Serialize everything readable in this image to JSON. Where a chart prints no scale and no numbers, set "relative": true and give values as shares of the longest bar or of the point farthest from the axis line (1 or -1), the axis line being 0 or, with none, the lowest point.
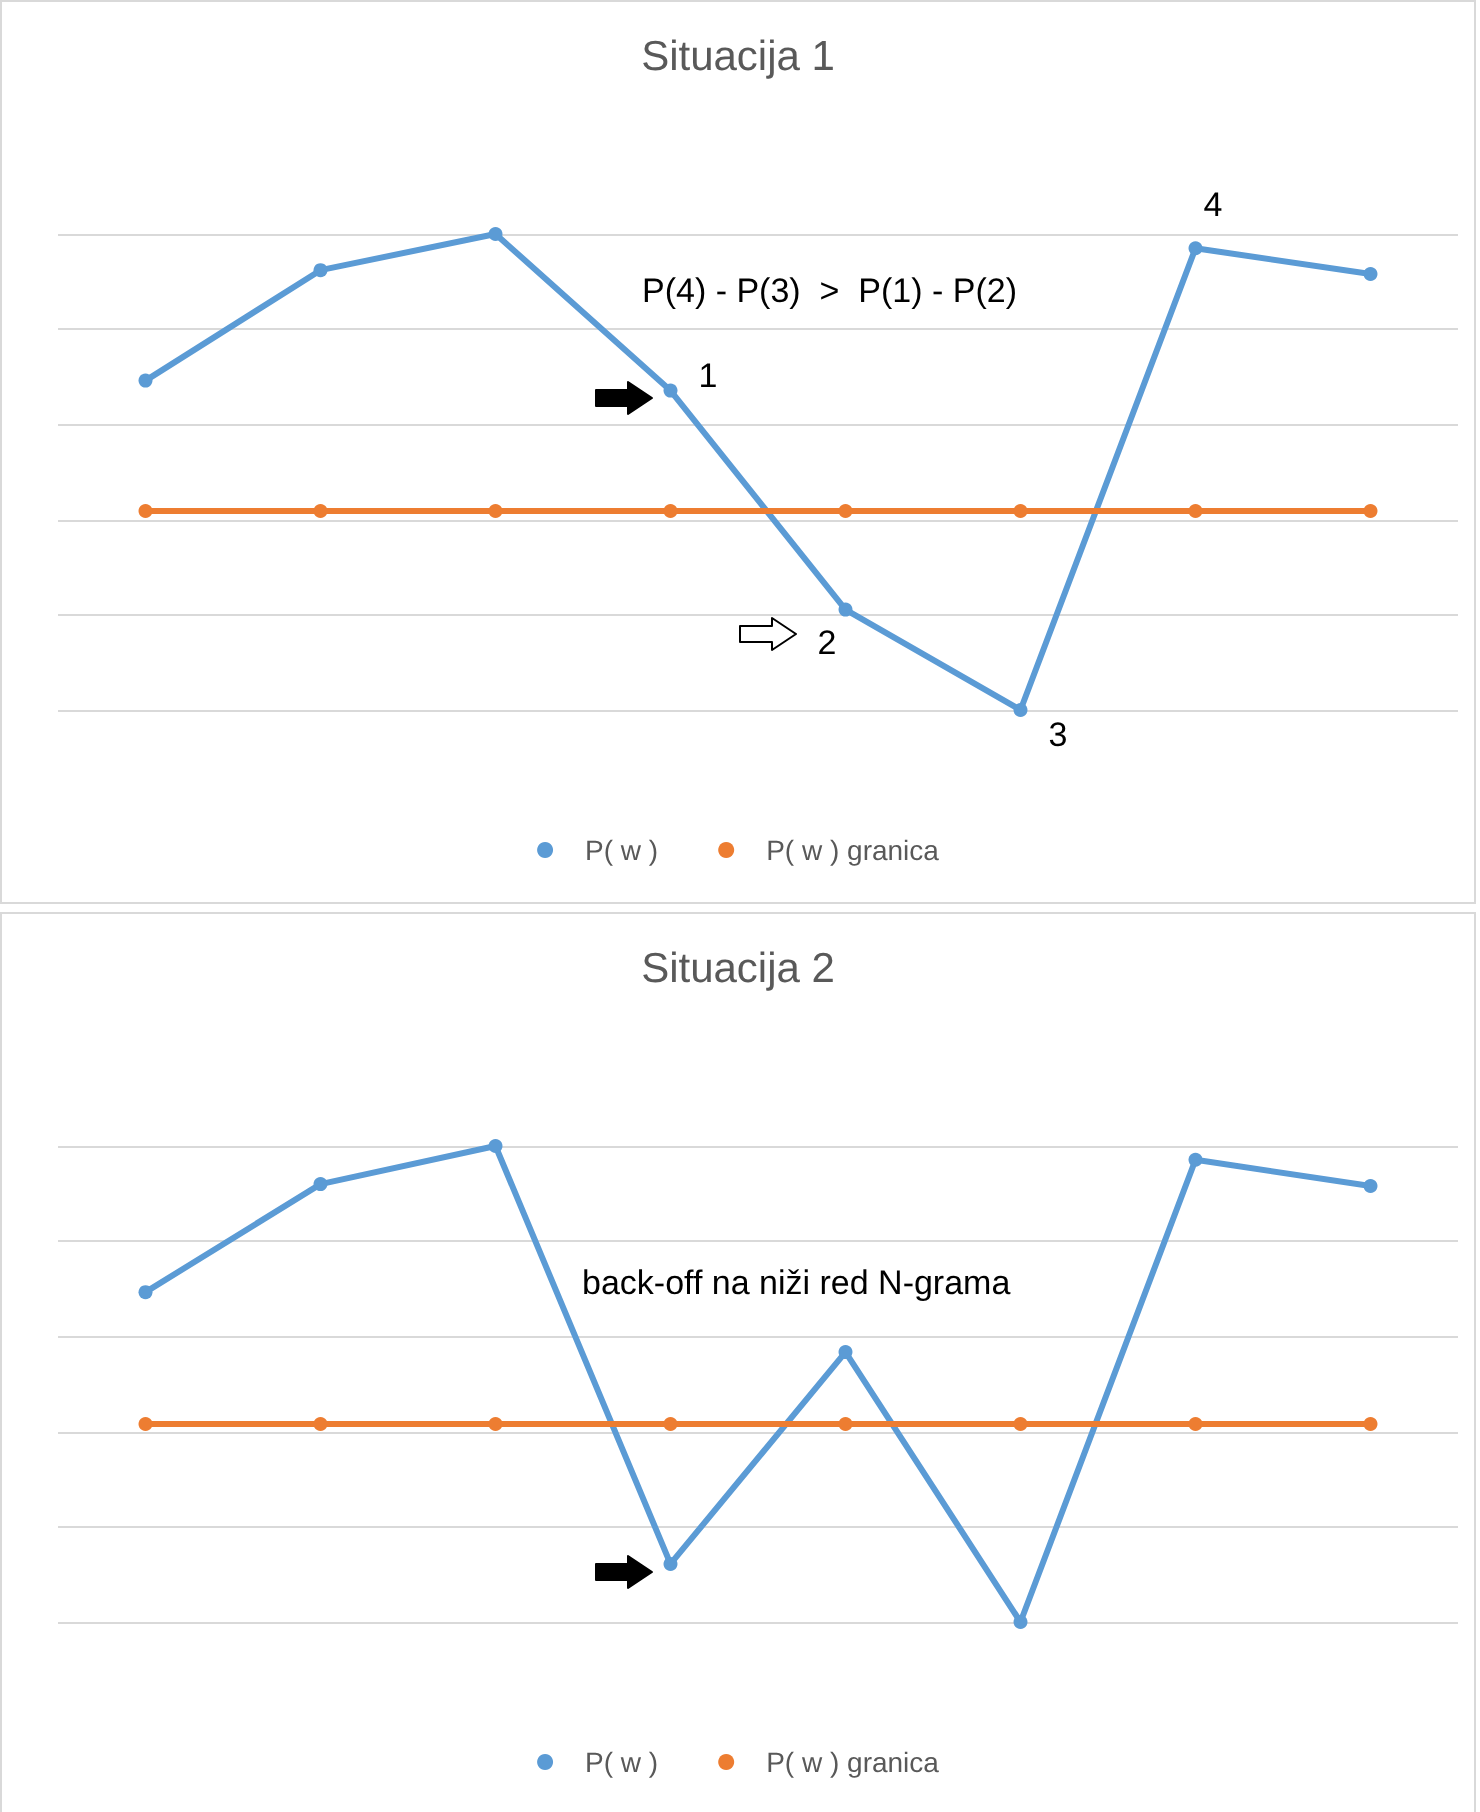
{
  "chart_data": [
    {
      "type": "line",
      "title": "Situacija 1",
      "relative": true,
      "categories": [
        null,
        null,
        null,
        null,
        null,
        null,
        null,
        null
      ],
      "grid": "y",
      "legend": "bottom",
      "marker": "circle",
      "annotations": [
        "P(4) - P(3)  >  P(1) - P(2)",
        "1",
        "2",
        "3",
        "4"
      ],
      "series": [
        {
          "name": "P( w )",
          "color": "#5b9bd5",
          "values": [
            0.692,
            0.924,
            1,
            0.671,
            0.211,
            0,
            0.97,
            0.916
          ]
        },
        {
          "name": "P( w ) granica",
          "color": "#ed7d31",
          "values": [
            0.418,
            0.418,
            0.418,
            0.418,
            0.418,
            0.418,
            0.418,
            0.418
          ]
        }
      ]
    },
    {
      "type": "line",
      "title": "Situacija 2",
      "relative": true,
      "categories": [
        null,
        null,
        null,
        null,
        null,
        null,
        null,
        null
      ],
      "grid": "y",
      "legend": "bottom",
      "marker": "circle",
      "annotations": [
        "back-off na niži red N-grama"
      ],
      "series": [
        {
          "name": "P( w )",
          "color": "#5b9bd5",
          "values": [
            0.693,
            0.92,
            1,
            0.122,
            0.567,
            0,
            0.971,
            0.916
          ]
        },
        {
          "name": "P( w ) granica",
          "color": "#ed7d31",
          "values": [
            0.416,
            0.416,
            0.416,
            0.416,
            0.416,
            0.416,
            0.416,
            0.416
          ]
        }
      ]
    }
  ]
}
